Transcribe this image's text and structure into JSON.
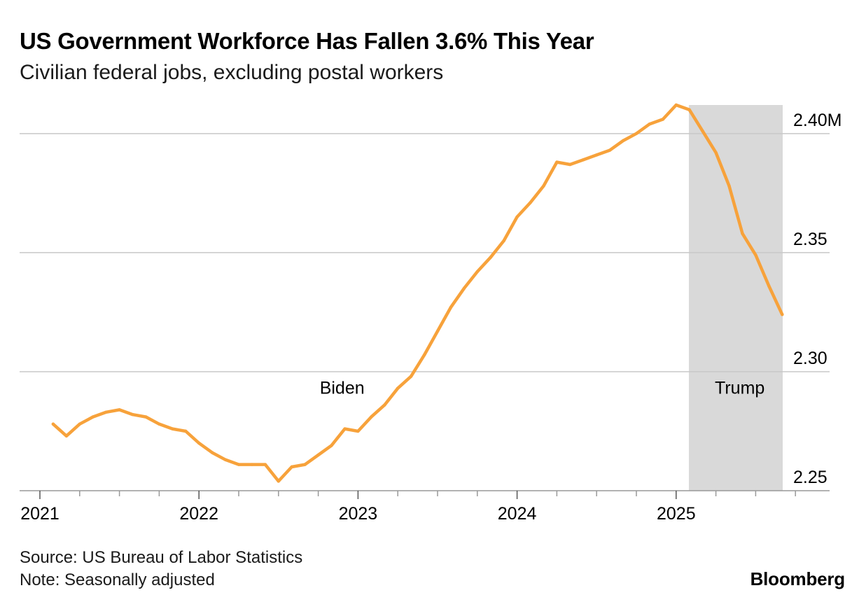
{
  "title": "US Government Workforce Has Fallen 3.6% This Year",
  "subtitle": "Civilian federal jobs, excluding postal workers",
  "footer": {
    "source": "Source: US Bureau of Labor Statistics",
    "note": "Note: Seasonally adjusted",
    "brand": "Bloomberg"
  },
  "colors": {
    "series": "#f7a23b",
    "shade": "#d9d9d9",
    "grid": "#c8c8c8",
    "axis": "#999999",
    "text": "#000000"
  },
  "chart_data": {
    "type": "line",
    "title": "US Government Workforce Has Fallen 3.6% This Year",
    "subtitle": "Civilian federal jobs, excluding postal workers",
    "xlabel": "",
    "ylabel": "",
    "ylim": [
      2.25,
      2.412
    ],
    "grid": true,
    "y_ticks": [
      {
        "value": 2.4,
        "label": "2.40M"
      },
      {
        "value": 2.35,
        "label": "2.35"
      },
      {
        "value": 2.3,
        "label": "2.30"
      },
      {
        "value": 2.25,
        "label": "2.25"
      }
    ],
    "x_ticks": [
      {
        "value": 2021,
        "label": "2021"
      },
      {
        "value": 2022,
        "label": "2022"
      },
      {
        "value": 2023,
        "label": "2023"
      },
      {
        "value": 2024,
        "label": "2024"
      },
      {
        "value": 2025,
        "label": "2025"
      }
    ],
    "shaded_regions": [
      {
        "start": 2025.08,
        "end": 2025.67,
        "label": "Trump"
      }
    ],
    "annotations": [
      {
        "text": "Biden",
        "x": 2022.9,
        "y": 2.293
      },
      {
        "text": "Trump",
        "x": 2025.4,
        "y": 2.293
      }
    ],
    "series": [
      {
        "name": "Civilian federal jobs (millions)",
        "x": [
          2021.083,
          2021.167,
          2021.25,
          2021.333,
          2021.417,
          2021.5,
          2021.583,
          2021.667,
          2021.75,
          2021.833,
          2021.917,
          2022.0,
          2022.083,
          2022.167,
          2022.25,
          2022.333,
          2022.417,
          2022.5,
          2022.583,
          2022.667,
          2022.75,
          2022.833,
          2022.917,
          2023.0,
          2023.083,
          2023.167,
          2023.25,
          2023.333,
          2023.417,
          2023.5,
          2023.583,
          2023.667,
          2023.75,
          2023.833,
          2023.917,
          2024.0,
          2024.083,
          2024.167,
          2024.25,
          2024.333,
          2024.417,
          2024.5,
          2024.583,
          2024.667,
          2024.75,
          2024.833,
          2024.917,
          2025.0,
          2025.083,
          2025.167,
          2025.25,
          2025.333,
          2025.417,
          2025.5,
          2025.583,
          2025.667
        ],
        "values": [
          2.278,
          2.273,
          2.278,
          2.281,
          2.283,
          2.284,
          2.282,
          2.281,
          2.278,
          2.276,
          2.275,
          2.27,
          2.266,
          2.263,
          2.261,
          2.261,
          2.261,
          2.254,
          2.26,
          2.261,
          2.265,
          2.269,
          2.276,
          2.275,
          2.281,
          2.286,
          2.293,
          2.298,
          2.307,
          2.317,
          2.327,
          2.335,
          2.342,
          2.348,
          2.355,
          2.365,
          2.371,
          2.378,
          2.388,
          2.387,
          2.389,
          2.391,
          2.393,
          2.397,
          2.4,
          2.404,
          2.406,
          2.412,
          2.41,
          2.401,
          2.392,
          2.378,
          2.358,
          2.349,
          2.336,
          2.324
        ]
      }
    ]
  }
}
